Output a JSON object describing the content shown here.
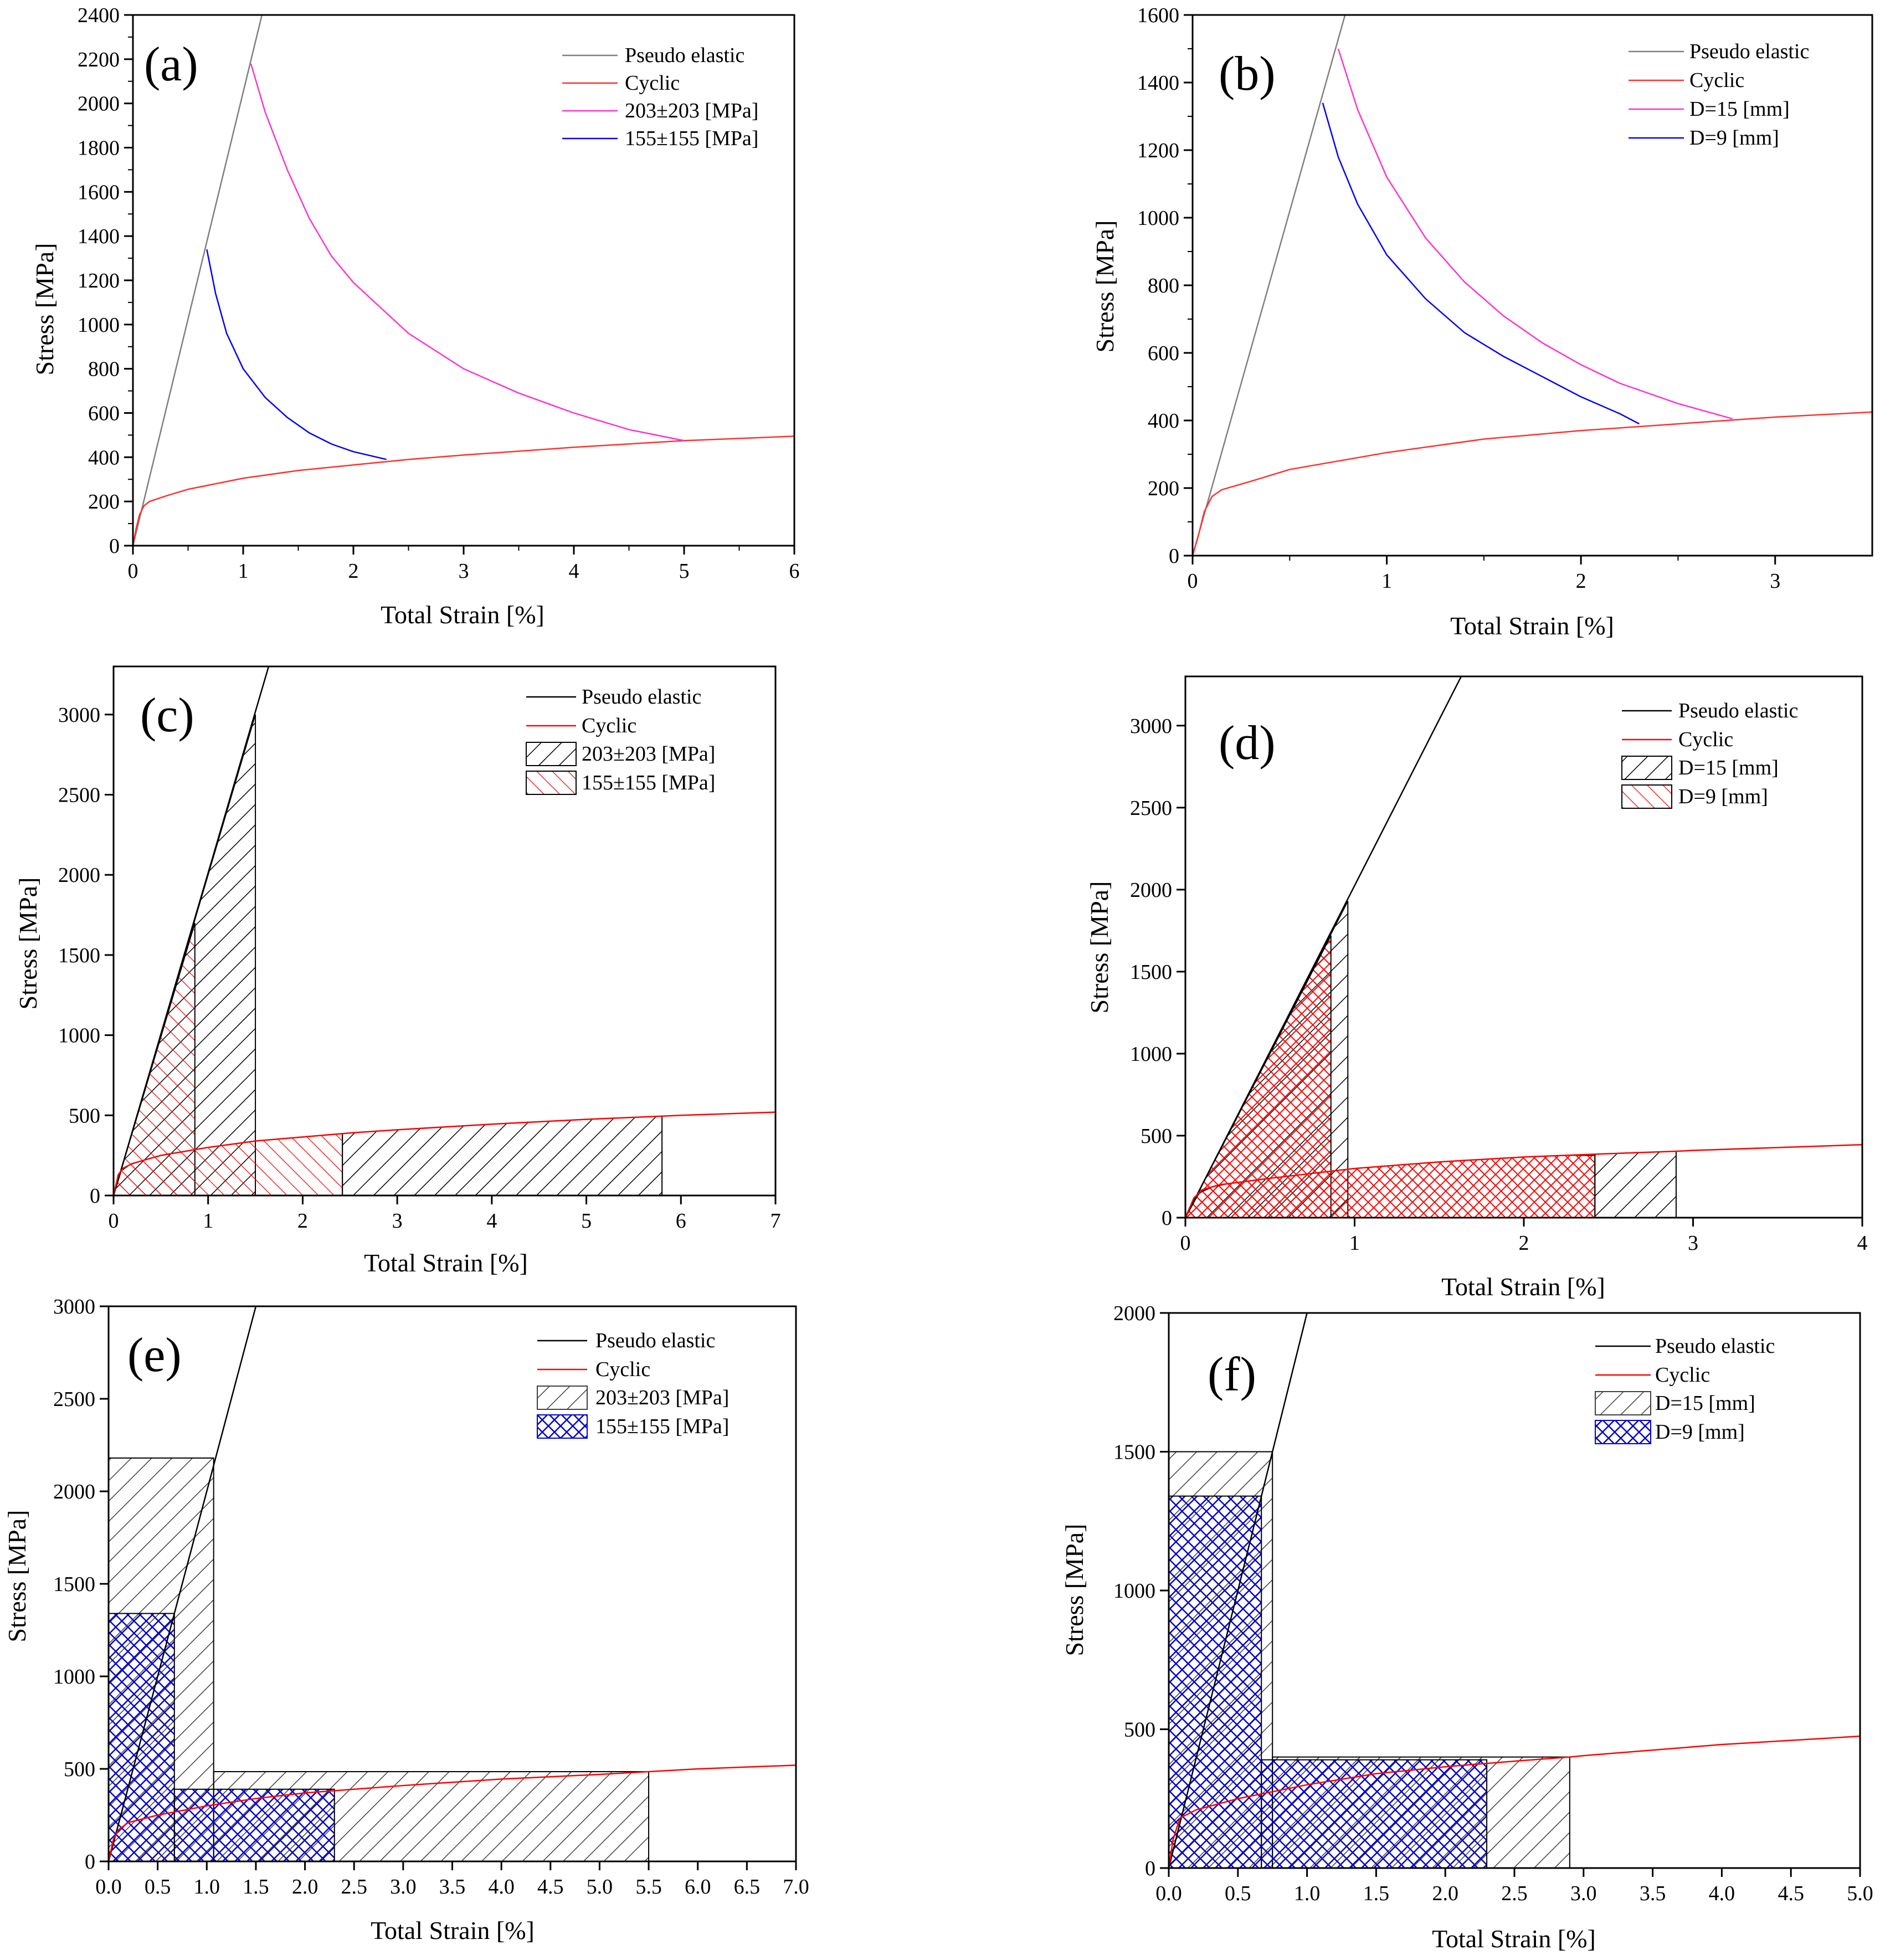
{
  "chart_data": [
    {
      "id": "a",
      "type": "line",
      "panel_label": "(a)",
      "xlabel": "Total Strain [%]",
      "ylabel": "Stress [MPa]",
      "xlim": [
        0,
        6
      ],
      "ylim": [
        0,
        2400
      ],
      "xticks": [
        0,
        1,
        2,
        3,
        4,
        5,
        6
      ],
      "yticks": [
        0,
        200,
        400,
        600,
        800,
        1000,
        1200,
        1400,
        1600,
        1800,
        2000,
        2200,
        2400
      ],
      "minor_ticks": true,
      "legend_position": "top-right",
      "series": [
        {
          "name": "Pseudo elastic",
          "color": "#7f7f7f",
          "points": [
            [
              0,
              0
            ],
            [
              1.18,
              2420
            ]
          ]
        },
        {
          "name": "Cyclic",
          "color": "#ff3030",
          "points": [
            [
              0,
              0
            ],
            [
              0.03,
              80
            ],
            [
              0.06,
              140
            ],
            [
              0.1,
              180
            ],
            [
              0.15,
              200
            ],
            [
              0.3,
              225
            ],
            [
              0.5,
              255
            ],
            [
              1,
              305
            ],
            [
              1.5,
              340
            ],
            [
              2,
              365
            ],
            [
              2.5,
              390
            ],
            [
              3,
              410
            ],
            [
              4,
              445
            ],
            [
              5,
              475
            ],
            [
              6,
              495
            ]
          ]
        },
        {
          "name": "203±203 [MPa]",
          "color": "#ff33cc",
          "points": [
            [
              1.07,
              2180
            ],
            [
              1.2,
              1960
            ],
            [
              1.4,
              1700
            ],
            [
              1.6,
              1480
            ],
            [
              1.8,
              1310
            ],
            [
              2,
              1190
            ],
            [
              2.5,
              960
            ],
            [
              3,
              800
            ],
            [
              3.5,
              690
            ],
            [
              4,
              600
            ],
            [
              4.5,
              525
            ],
            [
              5,
              475
            ]
          ]
        },
        {
          "name": "155±155 [MPa]",
          "color": "#0000ff",
          "points": [
            [
              0.67,
              1340
            ],
            [
              0.75,
              1140
            ],
            [
              0.85,
              960
            ],
            [
              1,
              800
            ],
            [
              1.2,
              670
            ],
            [
              1.4,
              580
            ],
            [
              1.6,
              510
            ],
            [
              1.8,
              460
            ],
            [
              2,
              425
            ],
            [
              2.3,
              390
            ]
          ]
        }
      ]
    },
    {
      "id": "b",
      "type": "line",
      "panel_label": "(b)",
      "xlabel": "Total Strain [%]",
      "ylabel": "Stress [MPa]",
      "xlim": [
        0,
        3.5
      ],
      "ylim": [
        0,
        1600
      ],
      "xticks": [
        0,
        1,
        2,
        3
      ],
      "yticks": [
        0,
        200,
        400,
        600,
        800,
        1000,
        1200,
        1400,
        1600
      ],
      "minor_ticks": true,
      "legend_position": "top-right",
      "series": [
        {
          "name": "Pseudo elastic",
          "color": "#7f7f7f",
          "points": [
            [
              0,
              0
            ],
            [
              0.79,
              1610
            ]
          ]
        },
        {
          "name": "Cyclic",
          "color": "#ff3030",
          "points": [
            [
              0,
              0
            ],
            [
              0.03,
              60
            ],
            [
              0.06,
              130
            ],
            [
              0.1,
              175
            ],
            [
              0.15,
              195
            ],
            [
              0.3,
              220
            ],
            [
              0.5,
              255
            ],
            [
              1,
              305
            ],
            [
              1.5,
              345
            ],
            [
              2,
              370
            ],
            [
              2.5,
              390
            ],
            [
              3,
              410
            ],
            [
              3.5,
              425
            ]
          ]
        },
        {
          "name": "D=15 [mm]",
          "color": "#ff33cc",
          "points": [
            [
              0.75,
              1500
            ],
            [
              0.85,
              1320
            ],
            [
              1,
              1120
            ],
            [
              1.2,
              940
            ],
            [
              1.4,
              810
            ],
            [
              1.6,
              710
            ],
            [
              1.8,
              630
            ],
            [
              2,
              565
            ],
            [
              2.2,
              510
            ],
            [
              2.5,
              450
            ],
            [
              2.78,
              405
            ]
          ]
        },
        {
          "name": "D=9 [mm]",
          "color": "#0000ff",
          "points": [
            [
              0.67,
              1340
            ],
            [
              0.75,
              1180
            ],
            [
              0.85,
              1040
            ],
            [
              1,
              890
            ],
            [
              1.2,
              760
            ],
            [
              1.4,
              660
            ],
            [
              1.6,
              590
            ],
            [
              1.8,
              530
            ],
            [
              2,
              470
            ],
            [
              2.2,
              420
            ],
            [
              2.3,
              390
            ]
          ]
        }
      ]
    },
    {
      "id": "c",
      "type": "area",
      "panel_label": "(c)",
      "xlabel": "Total Strain [%]",
      "ylabel": "Stress [MPa]",
      "xlim": [
        0,
        7
      ],
      "ylim": [
        0,
        3300
      ],
      "xticks": [
        0,
        1,
        2,
        3,
        4,
        5,
        6,
        7
      ],
      "yticks": [
        0,
        500,
        1000,
        1500,
        2000,
        2500,
        3000
      ],
      "legend_position": "top-right",
      "series": [
        {
          "name": "Pseudo elastic",
          "color": "#000000",
          "points": [
            [
              0,
              0
            ],
            [
              1.64,
              3300
            ]
          ]
        },
        {
          "name": "Cyclic",
          "color": "#ff0000",
          "points": [
            [
              0,
              0
            ],
            [
              0.05,
              130
            ],
            [
              0.1,
              170
            ],
            [
              0.2,
              200
            ],
            [
              0.5,
              250
            ],
            [
              1,
              300
            ],
            [
              1.5,
              340
            ],
            [
              2,
              365
            ],
            [
              2.5,
              390
            ],
            [
              3,
              410
            ],
            [
              4,
              445
            ],
            [
              5,
              475
            ],
            [
              5.8,
              495
            ],
            [
              6,
              500
            ],
            [
              7,
              520
            ]
          ]
        }
      ],
      "regions": [
        {
          "name": "203±203 [MPa]",
          "color": "#000000",
          "hatch": "diag",
          "pieces": [
            {
              "kind": "triangle",
              "strain": 1.5,
              "stress": 3000
            },
            {
              "kind": "band",
              "x1": 2.42,
              "x2": 5.8,
              "ytop": 495
            }
          ]
        },
        {
          "name": "155±155 [MPa]",
          "color": "#ff0000",
          "hatch": "anti",
          "pieces": [
            {
              "kind": "triangle",
              "strain": 0.86,
              "stress": 1700
            },
            {
              "kind": "band",
              "x1": 0,
              "x2": 2.42,
              "ytop": 390
            }
          ]
        }
      ]
    },
    {
      "id": "d",
      "type": "area",
      "panel_label": "(d)",
      "xlabel": "Total Strain [%]",
      "ylabel": "Stress [MPa]",
      "xlim": [
        0,
        4
      ],
      "ylim": [
        0,
        3300
      ],
      "xticks": [
        0,
        1,
        2,
        3,
        4
      ],
      "yticks": [
        0,
        500,
        1000,
        1500,
        2000,
        2500,
        3000
      ],
      "legend_position": "top-right",
      "series": [
        {
          "name": "Pseudo elastic",
          "color": "#000000",
          "points": [
            [
              0,
              0
            ],
            [
              1.63,
              3300
            ]
          ]
        },
        {
          "name": "Cyclic",
          "color": "#ff0000",
          "points": [
            [
              0,
              0
            ],
            [
              0.05,
              120
            ],
            [
              0.1,
              170
            ],
            [
              0.2,
              200
            ],
            [
              0.5,
              240
            ],
            [
              1,
              300
            ],
            [
              1.5,
              340
            ],
            [
              2,
              370
            ],
            [
              2.5,
              390
            ],
            [
              2.9,
              405
            ],
            [
              3,
              410
            ],
            [
              4,
              445
            ]
          ]
        }
      ],
      "regions": [
        {
          "name": "D=15 [mm]",
          "color": "#000000",
          "hatch": "diag",
          "pieces": [
            {
              "kind": "triangle",
              "strain": 0.96,
              "stress": 1930
            },
            {
              "kind": "band",
              "x1": 2.42,
              "x2": 2.9,
              "ytop": 405
            }
          ]
        },
        {
          "name": "D=9 [mm]",
          "color": "#ff0000",
          "hatch": "cross",
          "pieces": [
            {
              "kind": "triangle",
              "strain": 0.86,
              "stress": 1720
            },
            {
              "kind": "band",
              "x1": 0,
              "x2": 2.42,
              "ytop": 380
            }
          ]
        }
      ]
    },
    {
      "id": "e",
      "type": "area",
      "panel_label": "(e)",
      "xlabel": "Total Strain [%]",
      "ylabel": "Stress [MPa]",
      "xlim": [
        0,
        7
      ],
      "ylim": [
        0,
        3000
      ],
      "xticks": [
        0,
        0.5,
        1,
        1.5,
        2,
        2.5,
        3,
        3.5,
        4,
        4.5,
        5,
        5.5,
        6,
        6.5,
        7
      ],
      "xtick_labels": [
        "0.0",
        "0.5",
        "1.0",
        "1.5",
        "2.0",
        "2.5",
        "3.0",
        "3.5",
        "4.0",
        "4.5",
        "5.0",
        "5.5",
        "6.0",
        "6.5",
        "7.0"
      ],
      "yticks": [
        0,
        500,
        1000,
        1500,
        2000,
        2500,
        3000
      ],
      "legend_position": "top-right",
      "series": [
        {
          "name": "Pseudo elastic",
          "color": "#000000",
          "points": [
            [
              0,
              0
            ],
            [
              1.5,
              3000
            ]
          ]
        },
        {
          "name": "Cyclic",
          "color": "#ff0000",
          "points": [
            [
              0,
              0
            ],
            [
              0.05,
              120
            ],
            [
              0.1,
              170
            ],
            [
              0.2,
              210
            ],
            [
              0.5,
              250
            ],
            [
              1,
              300
            ],
            [
              1.5,
              340
            ],
            [
              2,
              370
            ],
            [
              2.5,
              390
            ],
            [
              3,
              410
            ],
            [
              4,
              445
            ],
            [
              5,
              470
            ],
            [
              5.5,
              485
            ],
            [
              6,
              500
            ],
            [
              7,
              520
            ]
          ]
        }
      ],
      "regions": [
        {
          "name": "203±203 [MPa]",
          "color": "#606060",
          "hatch": "diag",
          "pieces": [
            {
              "kind": "rect",
              "x1": 0,
              "x2": 1.07,
              "ytop": 2180
            },
            {
              "kind": "rect",
              "x1": 1.07,
              "x2": 5.5,
              "ytop": 485
            }
          ]
        },
        {
          "name": "155±155 [MPa]",
          "color": "#0000cc",
          "hatch": "cross",
          "pieces": [
            {
              "kind": "rect",
              "x1": 0,
              "x2": 0.67,
              "ytop": 1340
            },
            {
              "kind": "rect",
              "x1": 0.67,
              "x2": 2.3,
              "ytop": 390
            }
          ]
        }
      ]
    },
    {
      "id": "f",
      "type": "area",
      "panel_label": "(f)",
      "xlabel": "Total Strain [%]",
      "ylabel": "Stress [MPa]",
      "xlim": [
        0,
        5
      ],
      "ylim": [
        0,
        2000
      ],
      "xticks": [
        0,
        0.5,
        1,
        1.5,
        2,
        2.5,
        3,
        3.5,
        4,
        4.5,
        5
      ],
      "xtick_labels": [
        "0.0",
        "0.5",
        "1.0",
        "1.5",
        "2.0",
        "2.5",
        "3.0",
        "3.5",
        "4.0",
        "4.5",
        "5.0"
      ],
      "yticks": [
        0,
        500,
        1000,
        1500,
        2000
      ],
      "legend_position": "top-right",
      "series": [
        {
          "name": "Pseudo elastic",
          "color": "#000000",
          "points": [
            [
              0,
              0
            ],
            [
              1,
              2000
            ]
          ]
        },
        {
          "name": "Cyclic",
          "color": "#ff0000",
          "points": [
            [
              0,
              0
            ],
            [
              0.03,
              100
            ],
            [
              0.08,
              180
            ],
            [
              0.2,
              210
            ],
            [
              0.5,
              250
            ],
            [
              1,
              300
            ],
            [
              1.5,
              340
            ],
            [
              2,
              365
            ],
            [
              2.5,
              385
            ],
            [
              2.9,
              400
            ],
            [
              3,
              405
            ],
            [
              4,
              445
            ],
            [
              5,
              475
            ]
          ]
        }
      ],
      "regions": [
        {
          "name": "D=15 [mm]",
          "color": "#606060",
          "hatch": "diag",
          "pieces": [
            {
              "kind": "rect",
              "x1": 0,
              "x2": 0.75,
              "ytop": 1500
            },
            {
              "kind": "rect",
              "x1": 0.75,
              "x2": 2.9,
              "ytop": 400
            }
          ]
        },
        {
          "name": "D=9 [mm]",
          "color": "#0000cc",
          "hatch": "cross",
          "pieces": [
            {
              "kind": "rect",
              "x1": 0,
              "x2": 0.67,
              "ytop": 1340
            },
            {
              "kind": "rect",
              "x1": 0.67,
              "x2": 2.3,
              "ytop": 390
            }
          ]
        }
      ]
    }
  ]
}
